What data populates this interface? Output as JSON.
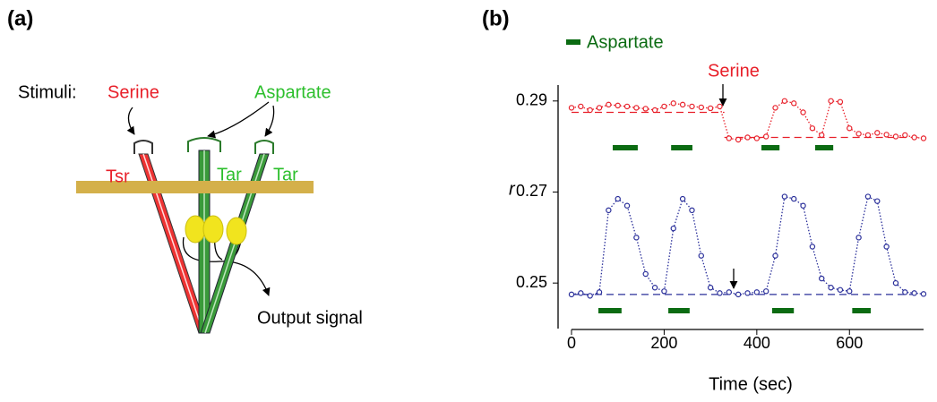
{
  "panel_labels": [
    "(a)",
    "(b)"
  ],
  "diagram": {
    "stimuli_label": "Stimuli:",
    "serine": "Serine",
    "aspartate": "Aspartate",
    "receptors": [
      "Tsr",
      "Tar",
      "Tar"
    ],
    "output": "Output signal"
  },
  "chart_data": {
    "type": "scatter",
    "xlabel": "Time (sec)",
    "ylabel": "r",
    "xlim": [
      0,
      760
    ],
    "xticks": [
      0,
      200,
      400,
      600
    ],
    "ylim": [
      0.24,
      0.2935
    ],
    "yticks": [
      0.25,
      0.27,
      0.29
    ],
    "x": [
      0,
      20,
      40,
      60,
      80,
      100,
      120,
      140,
      160,
      180,
      200,
      220,
      240,
      260,
      280,
      300,
      320,
      340,
      360,
      380,
      400,
      420,
      440,
      460,
      480,
      500,
      520,
      540,
      560,
      580,
      600,
      620,
      640,
      660,
      680,
      700,
      720,
      740,
      760
    ],
    "series": [
      {
        "color": "#e8202a",
        "values": [
          0.2885,
          0.2888,
          0.288,
          0.2885,
          0.2892,
          0.289,
          0.2888,
          0.2885,
          0.2883,
          0.288,
          0.2888,
          0.2895,
          0.2892,
          0.2888,
          0.2886,
          0.2884,
          0.2888,
          0.2818,
          0.2815,
          0.282,
          0.2818,
          0.2822,
          0.2885,
          0.29,
          0.2895,
          0.2875,
          0.284,
          0.2825,
          0.29,
          0.2898,
          0.284,
          0.2828,
          0.2825,
          0.283,
          0.2826,
          0.2822,
          0.2825,
          0.282,
          0.2818
        ],
        "baselines": [
          {
            "y": 0.2875,
            "x": [
              0,
              330
            ]
          },
          {
            "y": 0.282,
            "x": [
              330,
              760
            ]
          }
        ],
        "stimulus_intervals": [
          [
            89,
            143
          ],
          [
            215,
            261
          ],
          [
            410,
            449
          ],
          [
            526,
            565
          ]
        ]
      },
      {
        "color": "#2a2f9a",
        "values": [
          0.2475,
          0.2478,
          0.2472,
          0.248,
          0.266,
          0.2685,
          0.267,
          0.26,
          0.252,
          0.249,
          0.2482,
          0.262,
          0.2685,
          0.266,
          0.256,
          0.249,
          0.2478,
          0.248,
          0.2475,
          0.2478,
          0.248,
          0.2482,
          0.256,
          0.269,
          0.2685,
          0.267,
          0.258,
          0.251,
          0.249,
          0.2485,
          0.2482,
          0.26,
          0.269,
          0.268,
          0.258,
          0.25,
          0.248,
          0.2478,
          0.2476
        ],
        "baselines": [
          {
            "y": 0.2475,
            "x": [
              0,
              760
            ]
          }
        ],
        "stimulus_intervals": [
          [
            58,
            108
          ],
          [
            209,
            255
          ],
          [
            433,
            480
          ],
          [
            606,
            646
          ]
        ]
      }
    ],
    "legend": {
      "name": "Aspartate",
      "color": "#0b6b12"
    },
    "annotations": [
      {
        "text": "Serine",
        "color": "#e8202a"
      }
    ]
  }
}
